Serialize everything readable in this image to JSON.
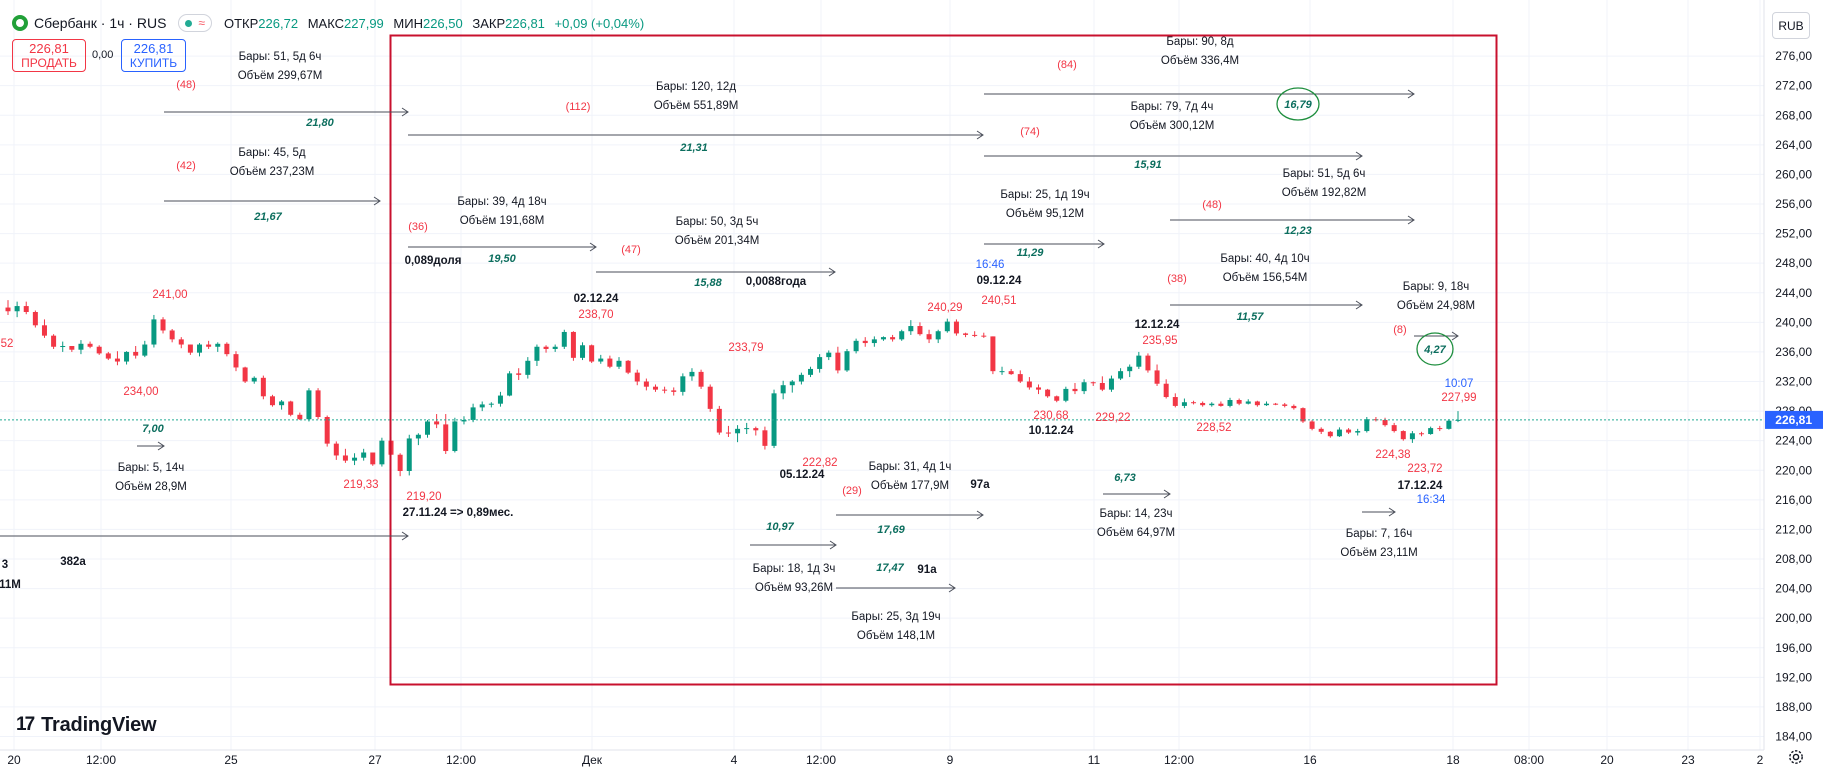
{
  "header": {
    "symbol": "Сбербанк · 1ч · RUS",
    "indicator_icon": "wave-icon",
    "ohlc": {
      "open_label": "ОТКР",
      "open": "226,72",
      "high_label": "МАКС",
      "high": "227,99",
      "low_label": "МИН",
      "low": "226,50",
      "close_label": "ЗАКР",
      "close": "226,81",
      "change": "+0,09 (+0,04%)"
    }
  },
  "trade_panel": {
    "sell_price": "226,81",
    "sell_label": "ПРОДАТЬ",
    "spread": "0,00",
    "buy_price": "226,81",
    "buy_label": "КУПИТЬ"
  },
  "currency": "RUB",
  "branding": "TradingView",
  "price_axis": {
    "ticks": [
      "276,00",
      "272,00",
      "268,00",
      "264,00",
      "260,00",
      "256,00",
      "252,00",
      "248,00",
      "244,00",
      "240,00",
      "236,00",
      "232,00",
      "228,00",
      "224,00",
      "220,00",
      "216,00",
      "212,00",
      "208,00",
      "204,00",
      "200,00",
      "196,00",
      "192,00",
      "188,00",
      "184,00"
    ],
    "last_price": "226,81"
  },
  "time_axis": [
    "20",
    "12:00",
    "25",
    "27",
    "12:00",
    "Дек",
    "4",
    "12:00",
    "9",
    "11",
    "12:00",
    "16",
    "18",
    "08:00",
    "20",
    "23",
    "2"
  ],
  "chart_data": {
    "type": "candlestick",
    "ylim": [
      182,
      279
    ],
    "candles_ohlc": [
      [
        242.0,
        243.0,
        241.0,
        241.5
      ],
      [
        241.5,
        242.8,
        240.7,
        242.2
      ],
      [
        242.2,
        242.8,
        241.1,
        241.4
      ],
      [
        241.4,
        241.6,
        239.3,
        239.6
      ],
      [
        239.6,
        240.4,
        237.9,
        238.2
      ],
      [
        238.2,
        238.4,
        236.4,
        236.7
      ],
      [
        236.7,
        237.4,
        236.0,
        236.8
      ],
      [
        236.8,
        236.8,
        236.0,
        236.3
      ],
      [
        236.3,
        237.6,
        235.7,
        237.1
      ],
      [
        237.1,
        237.4,
        236.5,
        236.7
      ],
      [
        236.7,
        236.9,
        235.6,
        235.8
      ],
      [
        235.8,
        236.0,
        234.9,
        235.1
      ],
      [
        235.1,
        236.1,
        234.2,
        234.7
      ],
      [
        234.7,
        236.1,
        234.3,
        236.0
      ],
      [
        236.0,
        236.8,
        235.1,
        235.5
      ],
      [
        235.5,
        237.5,
        235.3,
        237.0
      ],
      [
        237.0,
        241.0,
        236.6,
        240.4
      ],
      [
        240.4,
        240.7,
        238.5,
        238.9
      ],
      [
        238.9,
        239.1,
        237.3,
        237.7
      ],
      [
        237.7,
        238.0,
        236.5,
        237.0
      ],
      [
        237.0,
        237.0,
        235.6,
        235.9
      ],
      [
        235.9,
        237.2,
        235.4,
        237.0
      ],
      [
        237.0,
        237.5,
        236.4,
        236.7
      ],
      [
        236.7,
        237.3,
        236.0,
        237.1
      ],
      [
        237.1,
        237.3,
        235.4,
        235.7
      ],
      [
        235.7,
        236.1,
        233.4,
        233.9
      ],
      [
        233.9,
        234.0,
        231.8,
        232.0
      ],
      [
        232.0,
        232.7,
        231.7,
        232.5
      ],
      [
        232.5,
        232.8,
        229.6,
        230.0
      ],
      [
        230.0,
        230.2,
        228.6,
        228.8
      ],
      [
        228.8,
        229.5,
        228.2,
        229.3
      ],
      [
        229.3,
        229.4,
        227.3,
        227.5
      ],
      [
        227.5,
        227.8,
        226.8,
        226.9
      ],
      [
        226.9,
        231.1,
        226.6,
        230.8
      ],
      [
        230.8,
        231.1,
        226.9,
        227.2
      ],
      [
        227.2,
        227.4,
        223.2,
        223.6
      ],
      [
        223.6,
        223.9,
        221.4,
        222.0
      ],
      [
        222.0,
        222.9,
        221.0,
        221.3
      ],
      [
        221.3,
        222.3,
        220.7,
        221.7
      ],
      [
        221.7,
        222.9,
        221.3,
        222.4
      ],
      [
        222.4,
        222.4,
        220.6,
        220.8
      ],
      [
        220.8,
        224.4,
        220.5,
        224.0
      ],
      [
        224.0,
        224.5,
        221.6,
        222.1
      ],
      [
        222.1,
        222.3,
        219.2,
        219.9
      ],
      [
        219.9,
        224.8,
        219.3,
        224.3
      ],
      [
        224.3,
        225.0,
        223.4,
        224.8
      ],
      [
        224.8,
        226.8,
        224.4,
        226.6
      ],
      [
        226.6,
        227.6,
        225.7,
        226.2
      ],
      [
        226.2,
        227.6,
        222.2,
        222.6
      ],
      [
        222.6,
        227.1,
        222.4,
        226.6
      ],
      [
        226.6,
        227.3,
        226.2,
        226.8
      ],
      [
        226.8,
        229.0,
        226.5,
        228.5
      ],
      [
        228.5,
        229.3,
        228.0,
        228.9
      ],
      [
        228.9,
        229.2,
        228.5,
        229.0
      ],
      [
        229.0,
        230.6,
        228.6,
        230.1
      ],
      [
        230.1,
        233.4,
        230.0,
        233.1
      ],
      [
        233.1,
        233.8,
        232.2,
        232.9
      ],
      [
        232.9,
        235.3,
        232.4,
        234.8
      ],
      [
        234.8,
        237.0,
        234.1,
        236.7
      ],
      [
        236.7,
        236.9,
        235.9,
        236.4
      ],
      [
        236.4,
        237.0,
        236.0,
        236.7
      ],
      [
        236.7,
        239.0,
        236.4,
        238.7
      ],
      [
        238.7,
        238.8,
        234.8,
        235.2
      ],
      [
        235.2,
        237.3,
        234.9,
        236.9
      ],
      [
        236.9,
        237.0,
        234.5,
        234.7
      ],
      [
        234.7,
        235.6,
        234.4,
        235.1
      ],
      [
        235.1,
        235.5,
        233.8,
        234.0
      ],
      [
        234.0,
        235.3,
        233.7,
        234.8
      ],
      [
        234.8,
        234.9,
        233.0,
        233.2
      ],
      [
        233.2,
        233.6,
        231.5,
        232.0
      ],
      [
        232.0,
        232.4,
        230.8,
        231.3
      ],
      [
        231.3,
        231.6,
        230.6,
        230.9
      ],
      [
        230.9,
        231.3,
        230.4,
        230.8
      ],
      [
        230.8,
        231.2,
        230.1,
        230.6
      ],
      [
        230.6,
        233.1,
        230.1,
        232.7
      ],
      [
        232.7,
        233.8,
        232.1,
        233.3
      ],
      [
        233.3,
        233.6,
        231.0,
        231.3
      ],
      [
        231.3,
        231.6,
        227.9,
        228.3
      ],
      [
        228.3,
        228.7,
        224.8,
        225.1
      ],
      [
        225.1,
        226.0,
        224.5,
        225.0
      ],
      [
        225.0,
        226.1,
        223.8,
        225.6
      ],
      [
        225.6,
        226.4,
        224.9,
        225.7
      ],
      [
        225.7,
        225.9,
        224.7,
        225.4
      ],
      [
        225.4,
        225.9,
        222.8,
        223.3
      ],
      [
        223.3,
        230.9,
        223.0,
        230.4
      ],
      [
        230.4,
        232.1,
        229.6,
        231.5
      ],
      [
        231.5,
        232.2,
        230.5,
        232.0
      ],
      [
        232.0,
        233.2,
        231.6,
        232.9
      ],
      [
        232.9,
        234.0,
        232.6,
        233.7
      ],
      [
        233.7,
        235.7,
        233.2,
        235.3
      ],
      [
        235.3,
        236.2,
        234.9,
        235.9
      ],
      [
        235.9,
        236.7,
        233.1,
        233.5
      ],
      [
        233.5,
        236.4,
        233.3,
        236.1
      ],
      [
        236.1,
        237.8,
        235.8,
        237.5
      ],
      [
        237.5,
        238.0,
        236.7,
        237.2
      ],
      [
        237.2,
        238.1,
        236.7,
        237.7
      ],
      [
        237.7,
        238.1,
        237.5,
        238.0
      ],
      [
        238.0,
        238.3,
        237.4,
        237.7
      ],
      [
        237.7,
        239.0,
        237.5,
        238.8
      ],
      [
        238.8,
        240.3,
        238.3,
        239.5
      ],
      [
        239.5,
        240.0,
        238.2,
        238.4
      ],
      [
        238.4,
        239.0,
        237.2,
        237.7
      ],
      [
        237.7,
        239.0,
        237.2,
        238.8
      ],
      [
        238.8,
        240.5,
        238.6,
        240.1
      ],
      [
        240.1,
        240.4,
        238.2,
        238.5
      ],
      [
        238.5,
        238.6,
        238.0,
        238.3
      ],
      [
        238.3,
        238.8,
        238.0,
        238.2
      ],
      [
        238.2,
        238.6,
        237.9,
        238.1
      ],
      [
        238.1,
        238.1,
        233.0,
        233.4
      ],
      [
        233.4,
        234.0,
        232.9,
        233.4
      ],
      [
        233.4,
        233.7,
        232.9,
        233.0
      ],
      [
        233.0,
        233.5,
        231.8,
        232.0
      ],
      [
        232.0,
        232.6,
        230.9,
        231.2
      ],
      [
        231.2,
        231.6,
        230.3,
        230.9
      ],
      [
        230.9,
        231.0,
        229.8,
        230.0
      ],
      [
        230.0,
        230.1,
        229.2,
        229.4
      ],
      [
        229.4,
        231.3,
        229.2,
        231.0
      ],
      [
        231.0,
        231.8,
        230.3,
        230.7
      ],
      [
        230.7,
        232.3,
        230.3,
        231.9
      ],
      [
        231.9,
        232.0,
        231.4,
        231.8
      ],
      [
        231.8,
        232.7,
        230.7,
        230.9
      ],
      [
        230.9,
        232.8,
        230.6,
        232.4
      ],
      [
        232.4,
        233.8,
        232.2,
        233.4
      ],
      [
        233.4,
        234.3,
        232.6,
        234.0
      ],
      [
        234.0,
        236.0,
        233.7,
        235.5
      ],
      [
        235.5,
        235.8,
        233.2,
        233.5
      ],
      [
        233.5,
        234.3,
        231.4,
        231.7
      ],
      [
        231.7,
        232.3,
        229.7,
        229.9
      ],
      [
        229.9,
        230.4,
        228.5,
        228.7
      ],
      [
        228.7,
        229.7,
        228.4,
        229.2
      ],
      [
        229.2,
        229.4,
        228.9,
        229.1
      ],
      [
        229.1,
        229.3,
        228.6,
        228.8
      ],
      [
        228.8,
        229.2,
        228.6,
        229.0
      ],
      [
        229.0,
        229.3,
        228.6,
        228.7
      ],
      [
        228.7,
        229.8,
        228.5,
        229.5
      ],
      [
        229.5,
        229.7,
        228.8,
        229.0
      ],
      [
        229.0,
        229.6,
        228.9,
        229.3
      ],
      [
        229.3,
        229.4,
        228.6,
        228.8
      ],
      [
        228.8,
        229.3,
        228.7,
        229.0
      ],
      [
        229.0,
        229.1,
        228.8,
        228.9
      ],
      [
        228.9,
        229.1,
        228.5,
        228.7
      ],
      [
        228.7,
        228.9,
        228.2,
        228.4
      ],
      [
        228.4,
        228.5,
        226.4,
        226.6
      ],
      [
        226.6,
        226.8,
        225.4,
        225.6
      ],
      [
        225.6,
        225.8,
        224.9,
        225.2
      ],
      [
        225.2,
        225.3,
        224.4,
        224.6
      ],
      [
        224.6,
        225.8,
        224.5,
        225.5
      ],
      [
        225.5,
        225.7,
        224.9,
        225.1
      ],
      [
        225.1,
        225.6,
        224.7,
        225.3
      ],
      [
        225.3,
        227.2,
        225.1,
        226.9
      ],
      [
        226.9,
        227.2,
        226.6,
        226.8
      ],
      [
        226.8,
        227.1,
        225.9,
        226.1
      ],
      [
        226.1,
        226.4,
        225.1,
        225.3
      ],
      [
        225.3,
        225.4,
        224.0,
        224.2
      ],
      [
        224.2,
        225.3,
        223.7,
        225.0
      ],
      [
        225.0,
        225.2,
        224.6,
        224.9
      ],
      [
        224.9,
        225.9,
        224.8,
        225.7
      ],
      [
        225.7,
        226.0,
        225.3,
        225.6
      ],
      [
        225.6,
        226.9,
        225.5,
        226.7
      ],
      [
        226.7,
        227.99,
        226.5,
        226.81
      ]
    ],
    "price_labels": [
      {
        "text": "241,00",
        "color": "#f23645"
      },
      {
        "text": "234,00",
        "color": "#f23645"
      },
      {
        "text": "219,33",
        "color": "#f23645"
      },
      {
        "text": "219,20",
        "color": "#f23645"
      },
      {
        "text": "238,70",
        "color": "#f23645"
      },
      {
        "text": "233,79",
        "color": "#f23645"
      },
      {
        "text": "222,82",
        "color": "#f23645"
      },
      {
        "text": "240,29",
        "color": "#f23645"
      },
      {
        "text": "240,51",
        "color": "#f23645"
      },
      {
        "text": "230,68",
        "color": "#f23645"
      },
      {
        "text": "229,22",
        "color": "#f23645"
      },
      {
        "text": "235,95",
        "color": "#f23645"
      },
      {
        "text": "228,52",
        "color": "#f23645"
      },
      {
        "text": "224,38",
        "color": "#f23645"
      },
      {
        "text": "223,72",
        "color": "#f23645"
      },
      {
        "text": "227,99",
        "color": "#f23645"
      },
      {
        "text": "52",
        "color": "#f23645"
      }
    ],
    "date_labels": [
      "02.12.24",
      "05.12.24",
      "09.12.24",
      "10.12.24",
      "12.12.24",
      "17.12.24",
      "27.11.24 => 0,89мес.",
      "0,089доля",
      "0,0088года",
      "97а",
      "91а",
      "382а",
      "3",
      "11M"
    ],
    "time_labels": [
      {
        "text": "16:46",
        "color": "#2962ff"
      },
      {
        "text": "10:07",
        "color": "#2962ff"
      },
      {
        "text": "16:34",
        "color": "#2962ff"
      }
    ],
    "ranges": [
      {
        "bars": "Бары: 51, 5д 6ч",
        "volume": "Объём 299,67M",
        "count": "(48)",
        "change": "21,80"
      },
      {
        "bars": "Бары: 45, 5д",
        "volume": "Объём 237,23M",
        "count": "(42)",
        "change": "21,67"
      },
      {
        "bars": "Бары: 120, 12д",
        "volume": "Объём 551,89M",
        "count": "(112)",
        "change": "21,31"
      },
      {
        "bars": "Бары: 39, 4д 18ч",
        "volume": "Объём 191,68M",
        "count": "(36)",
        "change": "19,50"
      },
      {
        "bars": "Бары: 50, 3д 5ч",
        "volume": "Объём 201,34M",
        "count": "(47)",
        "change": "15,88"
      },
      {
        "bars": "Бары: 90, 8д",
        "volume": "Объём 336,4M",
        "count": "(84)",
        "change": "16,79"
      },
      {
        "bars": "Бары: 79, 7д 4ч",
        "volume": "Объём 300,12M",
        "count": "(74)",
        "change": "15,91"
      },
      {
        "bars": "Бары: 25, 1д 19ч",
        "volume": "Объём 95,12M",
        "count": "",
        "change": "11,29"
      },
      {
        "bars": "Бары: 51, 5д 6ч",
        "volume": "Объём 192,82M",
        "count": "(48)",
        "change": "12,23"
      },
      {
        "bars": "Бары: 40, 4д 10ч",
        "volume": "Объём 156,54M",
        "count": "(38)",
        "change": "11,57"
      },
      {
        "bars": "Бары: 9, 18ч",
        "volume": "Объём 24,98M",
        "count": "(8)",
        "change": "4,27"
      },
      {
        "bars": "Бары: 5, 14ч",
        "volume": "Объём 28,9M",
        "count": "",
        "change": "7,00"
      },
      {
        "bars": "Бары: 31, 4д 1ч",
        "volume": "Объём 177,9M",
        "count": "(29)",
        "change": "17,69"
      },
      {
        "bars": "Бары: 18, 1д 3ч",
        "volume": "Объём 93,26M",
        "count": "",
        "change": "10,97"
      },
      {
        "bars": "Бары: 25, 3д 19ч",
        "volume": "Объём 148,1M",
        "count": "",
        "change": "17,47"
      },
      {
        "bars": "Бары: 14, 23ч",
        "volume": "Объём 64,97M",
        "count": "",
        "change": "6,73"
      },
      {
        "bars": "Бары: 7, 16ч",
        "volume": "Объём 23,11M",
        "count": "",
        "change": ""
      }
    ],
    "colors": {
      "up": "#089981",
      "down": "#f23645",
      "range_box": "#c8102e",
      "last_price_badge": "#2962ff",
      "change_text": "#0c6e5e"
    }
  }
}
